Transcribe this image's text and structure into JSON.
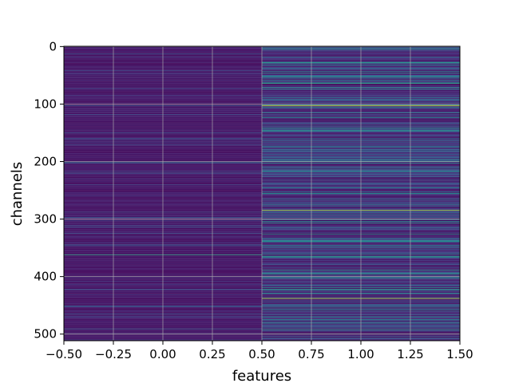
{
  "chart_data": {
    "type": "heatmap",
    "title": "",
    "xlabel": "features",
    "ylabel": "channels",
    "xlim": [
      -0.5,
      1.5
    ],
    "ylim": [
      511.5,
      -0.5
    ],
    "y_inverted": true,
    "grid": true,
    "colormap": "viridis",
    "n_rows": 512,
    "columns": [
      0,
      1
    ],
    "xticks": [
      "−0.50",
      "−0.25",
      "0.00",
      "0.25",
      "0.50",
      "0.75",
      "1.00",
      "1.25",
      "1.50"
    ],
    "xtick_values": [
      -0.5,
      -0.25,
      0.0,
      0.25,
      0.5,
      0.75,
      1.0,
      1.25,
      1.5
    ],
    "yticks": [
      "0",
      "100",
      "200",
      "300",
      "400",
      "500"
    ],
    "ytick_values": [
      0,
      100,
      200,
      300,
      400,
      500
    ],
    "highlights": [
      {
        "column": 0,
        "row": 362,
        "level": 0.62
      },
      {
        "column": 0,
        "row": 201,
        "level": 0.38
      },
      {
        "column": 1,
        "row": 103,
        "level": 0.95
      },
      {
        "column": 1,
        "row": 285,
        "level": 0.92
      },
      {
        "column": 1,
        "row": 438,
        "level": 0.9
      },
      {
        "column": 1,
        "row": 64,
        "level": 0.6
      },
      {
        "column": 1,
        "row": 200,
        "level": 0.55
      },
      {
        "column": 1,
        "row": 365,
        "level": 0.55
      },
      {
        "column": 1,
        "row": 470,
        "level": 0.5
      },
      {
        "column": 1,
        "row": 492,
        "level": 0.55
      }
    ]
  }
}
